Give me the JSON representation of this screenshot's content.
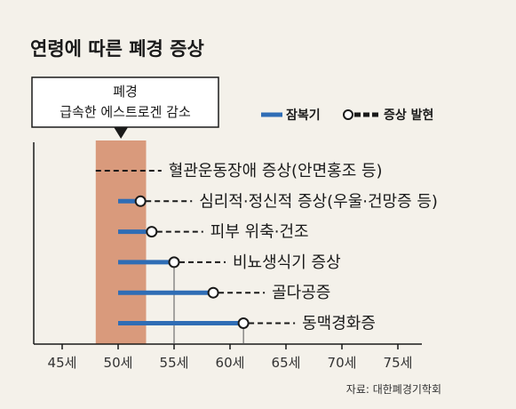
{
  "chart_data": {
    "type": "bar",
    "title": "연령에 따른 폐경 증상",
    "callout": {
      "line1": "폐경",
      "line2": "급속한 에스트로겐 감소"
    },
    "menopause_band": [
      48,
      52.5
    ],
    "xlim": [
      42,
      77
    ],
    "xticks": [
      45,
      50,
      55,
      60,
      65,
      70,
      75
    ],
    "tick_labels": [
      "45세",
      "50세",
      "55세",
      "60세",
      "65세",
      "70세",
      "75세"
    ],
    "legend": {
      "latent": "잠복기",
      "symptom": "증상 발현"
    },
    "symptoms": [
      {
        "label": "혈관운동장애 증상(안면홍조 등)",
        "start": null,
        "onset": 48,
        "guide_to_axis": false
      },
      {
        "label": "심리적·정신적 증상(우울·건망증 등)",
        "start": 50,
        "onset": 52,
        "guide_to_axis": false
      },
      {
        "label": "피부 위축·건조",
        "start": 50,
        "onset": 53,
        "guide_to_axis": false
      },
      {
        "label": "비뇨생식기 증상",
        "start": 50,
        "onset": 55,
        "guide_to_axis": true
      },
      {
        "label": "골다공증",
        "start": 50,
        "onset": 58.5,
        "guide_to_axis": false
      },
      {
        "label": "동맥경화증",
        "start": 50,
        "onset": 61.2,
        "guide_to_axis": true
      }
    ],
    "source": "자료: 대한폐경기학회",
    "colors": {
      "band": "#d99a7c",
      "latent": "#2f6db5",
      "symptom": "#1a1a1a"
    }
  }
}
